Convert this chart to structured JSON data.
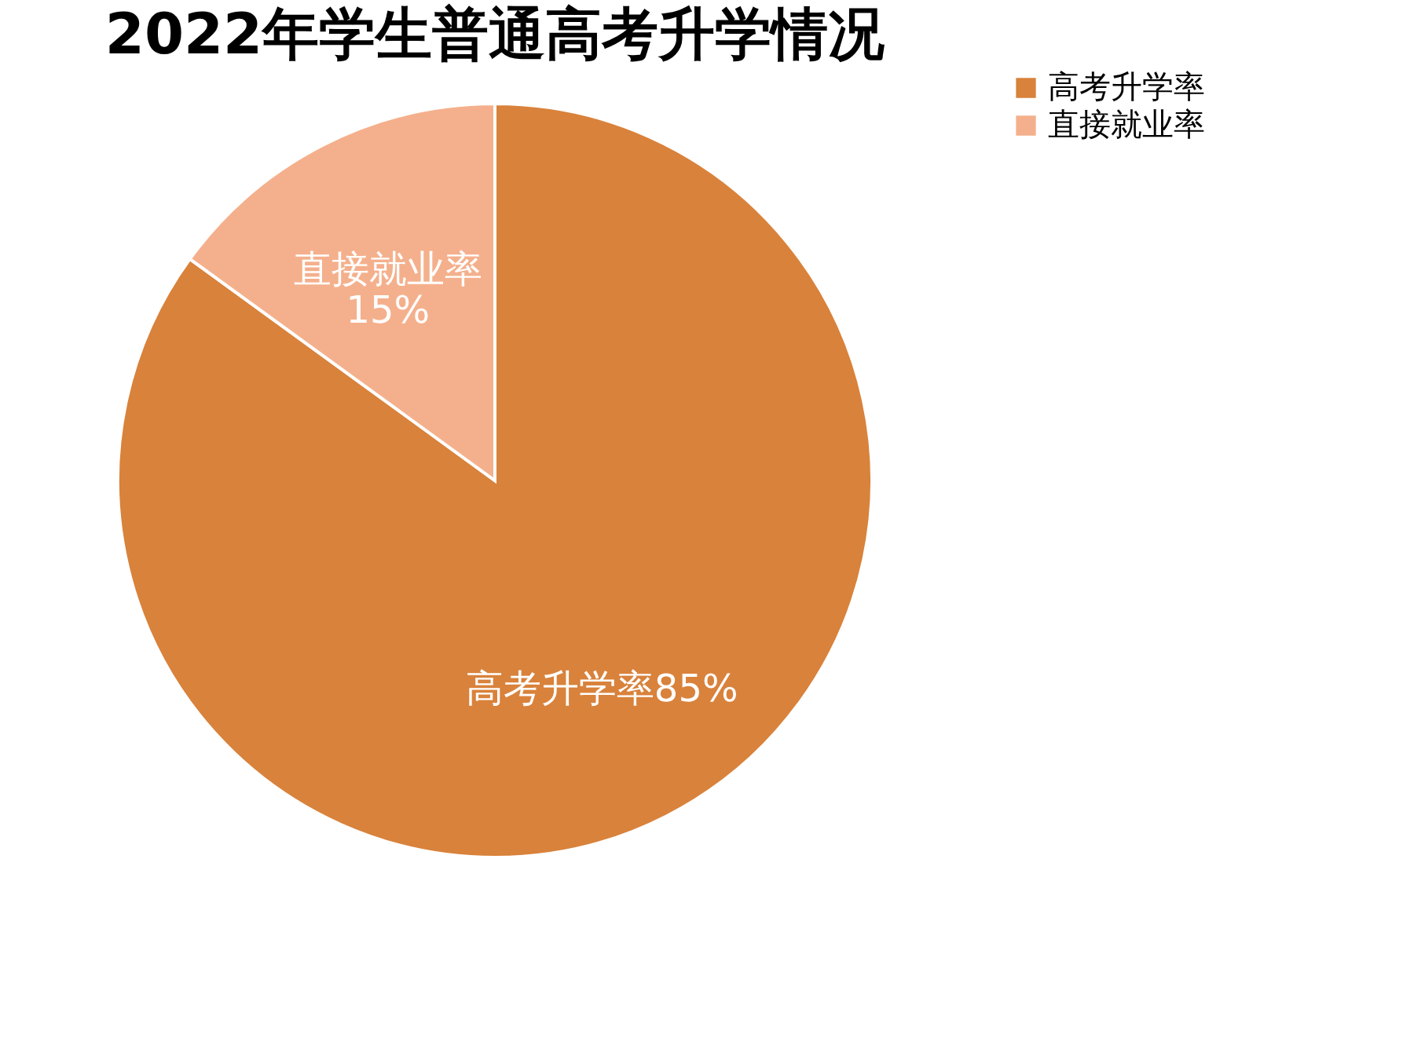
{
  "chart_data": {
    "type": "pie",
    "title": "2022年学生普通高考升学情况",
    "categories": [
      "高考升学率",
      "直接就业率"
    ],
    "values": [
      85,
      15
    ],
    "colors": [
      "#d9823b",
      "#f4b08c"
    ],
    "value_labels": [
      "85%",
      "15%"
    ],
    "legend": "right"
  }
}
